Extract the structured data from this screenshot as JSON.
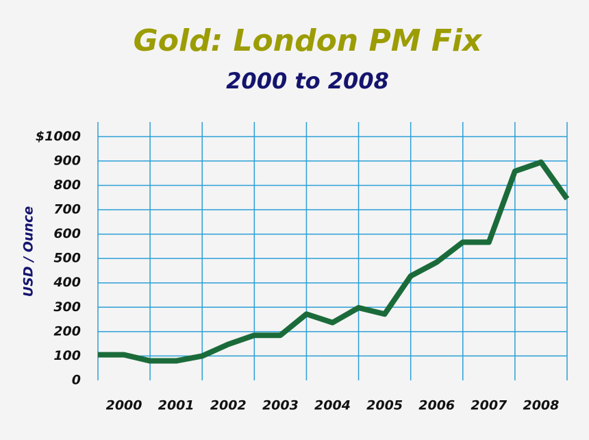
{
  "chart_data": {
    "type": "line",
    "title": "Gold:  London PM Fix",
    "subtitle": "2000 to 2008",
    "y_label": "USD / Ounce",
    "categories": [
      "2000",
      "2001",
      "2002",
      "2003",
      "2004",
      "2005",
      "2006",
      "2007",
      "2008"
    ],
    "x": [
      2000,
      2000.5,
      2001,
      2001.5,
      2002,
      2002.5,
      2003,
      2003.5,
      2004,
      2004.5,
      2005,
      2005.5,
      2006,
      2006.5,
      2007,
      2007.5,
      2008,
      2008.5,
      2009
    ],
    "series": [
      {
        "name": "Gold",
        "color": "#1b6b3a",
        "values": [
          105,
          105,
          80,
          80,
          100,
          148,
          185,
          185,
          272,
          237,
          298,
          272,
          428,
          485,
          567,
          567,
          858,
          895,
          745
        ]
      }
    ],
    "xlim": [
      2000,
      2009
    ],
    "ylim": [
      0,
      1060
    ],
    "yticks": [
      0,
      100,
      200,
      300,
      400,
      500,
      600,
      700,
      800,
      900,
      {
        "value": 1000,
        "label": "$1000"
      }
    ],
    "grid": true
  }
}
